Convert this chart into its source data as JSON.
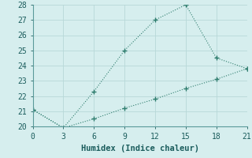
{
  "line1_x": [
    0,
    3,
    6,
    9,
    12,
    15,
    18,
    21
  ],
  "line1_y": [
    21.1,
    19.9,
    22.3,
    25.0,
    27.0,
    28.0,
    24.5,
    23.8
  ],
  "line2_x": [
    0,
    3,
    6,
    9,
    12,
    15,
    18,
    21
  ],
  "line2_y": [
    21.1,
    19.9,
    20.5,
    21.2,
    21.8,
    22.5,
    23.1,
    23.8
  ],
  "line_color": "#2e7d6e",
  "marker": "+",
  "xlabel": "Humidex (Indice chaleur)",
  "xlim": [
    0,
    21
  ],
  "ylim": [
    20,
    28
  ],
  "xticks": [
    0,
    3,
    6,
    9,
    12,
    15,
    18,
    21
  ],
  "yticks": [
    20,
    21,
    22,
    23,
    24,
    25,
    26,
    27,
    28
  ],
  "background_color": "#d6eeee",
  "grid_color": "#b8d8d8",
  "xlabel_fontsize": 7.5,
  "tick_fontsize": 7
}
